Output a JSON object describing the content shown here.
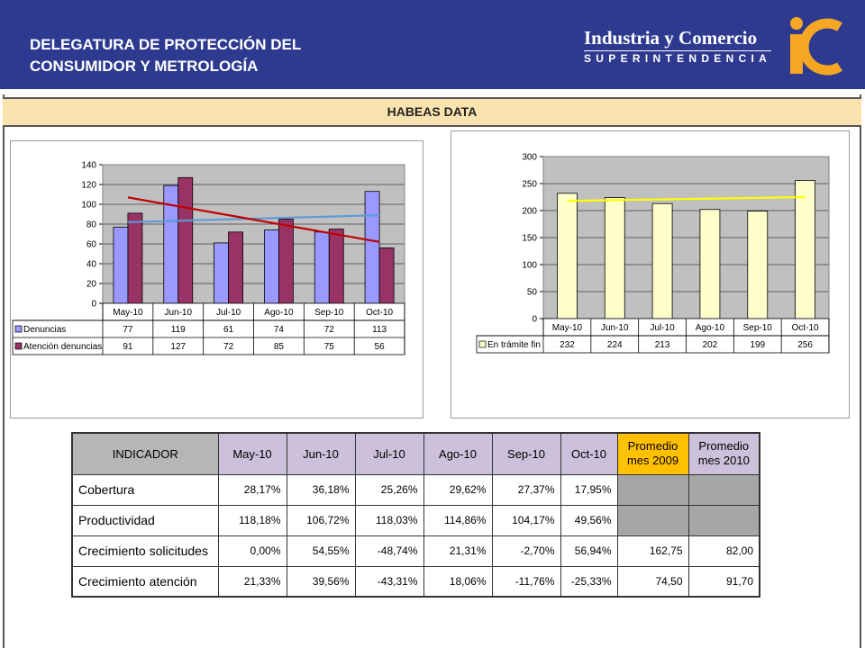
{
  "header": {
    "title_line1": "DELEGATURA DE PROTECCIÓN DEL",
    "title_line2": "CONSUMIDOR Y METROLOGÍA",
    "brand_name": "Industria y Comercio",
    "brand_sub": "SUPERINTENDENCIA",
    "brand_color": "#2e3a8f",
    "logo_color": "#f5a623"
  },
  "section_title": "HABEAS DATA",
  "chart_data": [
    {
      "type": "bar",
      "categories": [
        "May-10",
        "Jun-10",
        "Jul-10",
        "Ago-10",
        "Sep-10",
        "Oct-10"
      ],
      "series": [
        {
          "name": "Denuncias",
          "values": [
            77,
            119,
            61,
            74,
            72,
            113
          ],
          "color": "#9999ff"
        },
        {
          "name": "Atención denuncias",
          "values": [
            91,
            127,
            72,
            85,
            75,
            56
          ],
          "color": "#993366"
        }
      ],
      "trendlines": [
        {
          "series": "Denuncias",
          "color": "#5b9bd5",
          "start": 82,
          "end": 89
        },
        {
          "series": "Atención denuncias",
          "color": "#c00000",
          "start": 107,
          "end": 62
        }
      ],
      "yticks": [
        0,
        20,
        40,
        60,
        80,
        100,
        120,
        140
      ],
      "ylim": [
        0,
        140
      ],
      "grid": true,
      "data_table": true,
      "plot_bg": "#c0c0c0"
    },
    {
      "type": "bar",
      "categories": [
        "May-10",
        "Jun-10",
        "Jul-10",
        "Ago-10",
        "Sep-10",
        "Oct-10"
      ],
      "series": [
        {
          "name": "En trámite fin",
          "values": [
            232,
            224,
            213,
            202,
            199,
            256
          ],
          "color": "#ffffcc"
        }
      ],
      "trendlines": [
        {
          "series": "En trámite fin",
          "color": "#ffff00",
          "start": 218,
          "end": 225
        }
      ],
      "yticks": [
        0,
        50,
        100,
        150,
        200,
        250,
        300
      ],
      "ylim": [
        0,
        300
      ],
      "grid": true,
      "data_table": true,
      "plot_bg": "#c0c0c0"
    }
  ],
  "table": {
    "header": {
      "indicator": "INDICADOR",
      "months": [
        "May-10",
        "Jun-10",
        "Jul-10",
        "Ago-10",
        "Sep-10",
        "Oct-10"
      ],
      "avg2009_l1": "Promedio",
      "avg2009_l2": "mes 2009",
      "avg2010_l1": "Promedio",
      "avg2010_l2": "mes 2010"
    },
    "rows": [
      {
        "label": "Cobertura",
        "values": [
          "28,17%",
          "36,18%",
          "25,26%",
          "29,62%",
          "27,37%",
          "17,95%"
        ],
        "avg2009": "",
        "avg2010": ""
      },
      {
        "label": "Productividad",
        "values": [
          "118,18%",
          "106,72%",
          "118,03%",
          "114,86%",
          "104,17%",
          "49,56%"
        ],
        "avg2009": "",
        "avg2010": ""
      },
      {
        "label": "Crecimiento solicitudes",
        "values": [
          "0,00%",
          "54,55%",
          "-48,74%",
          "21,31%",
          "-2,70%",
          "56,94%"
        ],
        "avg2009": "162,75",
        "avg2010": "82,00"
      },
      {
        "label": "Crecimiento atención",
        "values": [
          "21,33%",
          "39,56%",
          "-43,31%",
          "18,06%",
          "-11,76%",
          "-25,33%"
        ],
        "avg2009": "74,50",
        "avg2010": "91,70"
      }
    ]
  }
}
